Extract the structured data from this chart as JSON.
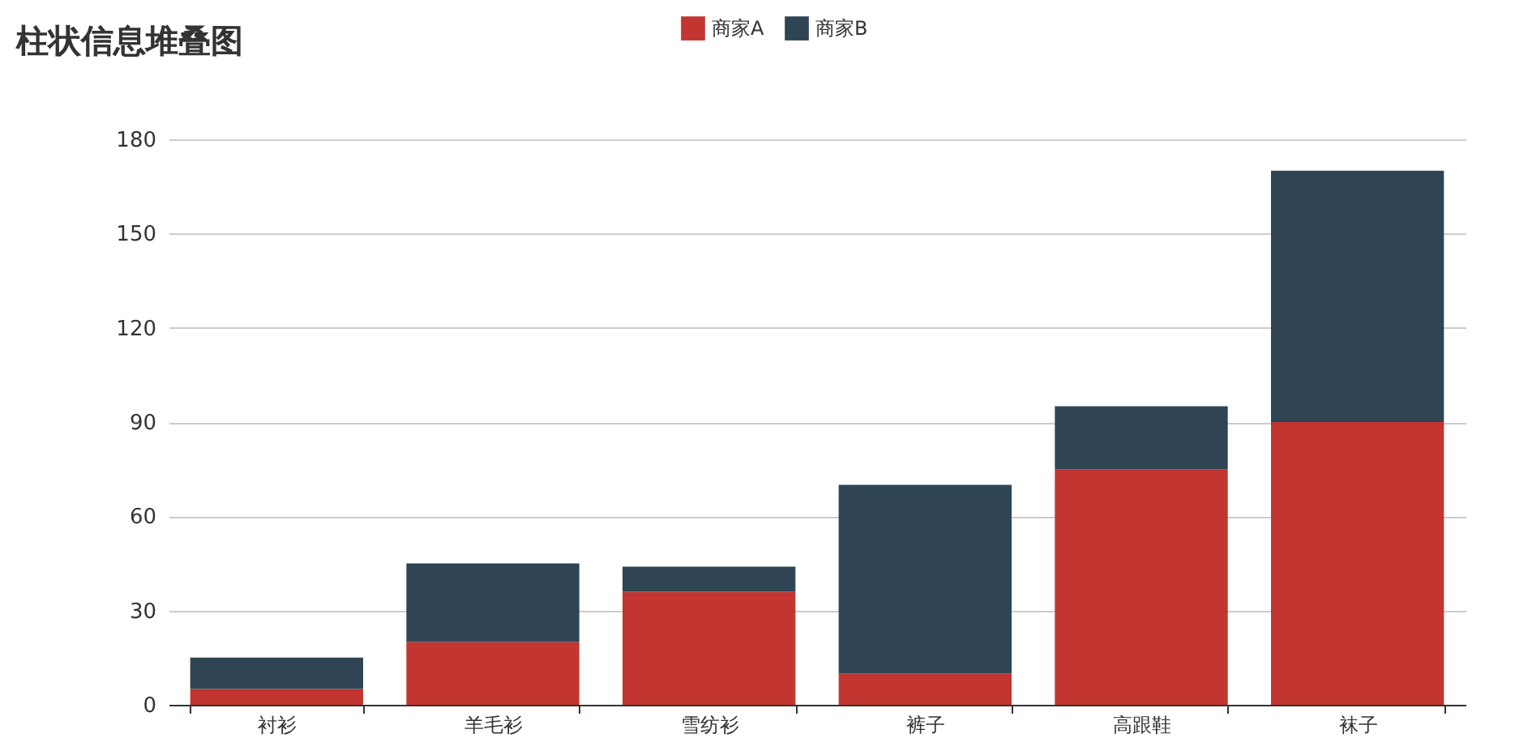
{
  "chart_data": {
    "type": "bar",
    "title": "柱状信息堆叠图",
    "categories": [
      "衬衫",
      "羊毛衫",
      "雪纺衫",
      "裤子",
      "高跟鞋",
      "袜子"
    ],
    "stacked": true,
    "series": [
      {
        "name": "商家A",
        "color": "#c23531",
        "values": [
          5,
          20,
          36,
          10,
          75,
          90
        ]
      },
      {
        "name": "商家B",
        "color": "#2f4554",
        "values": [
          10,
          25,
          8,
          60,
          20,
          80
        ]
      }
    ],
    "ylim": [
      0,
      180
    ],
    "yticks": [
      0,
      30,
      60,
      90,
      120,
      150,
      180
    ],
    "grid": "y",
    "legend": "top"
  }
}
